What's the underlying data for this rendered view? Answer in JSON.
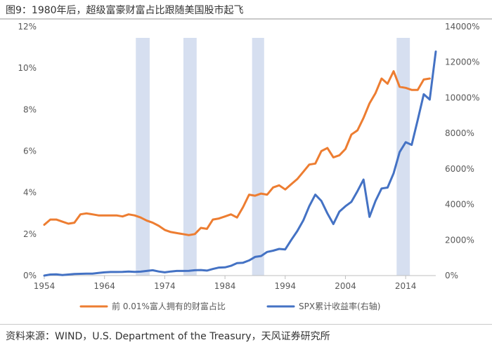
{
  "header": {
    "title": "图9：1980年后，超级富豪财富占比跟随美国股市起飞"
  },
  "footer": {
    "source": "资料来源：WIND，U.S. Department of the Treasury，天风证券研究所"
  },
  "chart_data": {
    "type": "line",
    "title": "图9：1980年后，超级富豪财富占比跟随美国股市起飞",
    "x_ticks": [
      1954,
      1964,
      1974,
      1984,
      1994,
      2004,
      2014
    ],
    "xlim": [
      1954,
      2019
    ],
    "y_left": {
      "ticks": [
        "0%",
        "2%",
        "4%",
        "6%",
        "8%",
        "10%",
        "12%"
      ],
      "lim": [
        0,
        12
      ]
    },
    "y_right": {
      "ticks": [
        "0%",
        "2000%",
        "4000%",
        "6000%",
        "8000%",
        "10000%",
        "12000%",
        "14000%"
      ],
      "lim": [
        0,
        14000
      ]
    },
    "shaded_periods": [
      [
        1969.2,
        1971.5
      ],
      [
        1977.1,
        1979.3
      ],
      [
        1988.5,
        1990.5
      ],
      [
        2012.5,
        2014.7
      ]
    ],
    "series": [
      {
        "name": "前 0.01%富人拥有的财富占比",
        "axis": "left",
        "color": "#ED7D31",
        "x": [
          1954,
          1955,
          1956,
          1957,
          1958,
          1959,
          1960,
          1961,
          1962,
          1963,
          1964,
          1965,
          1966,
          1967,
          1968,
          1969,
          1970,
          1971,
          1972,
          1973,
          1974,
          1975,
          1976,
          1977,
          1978,
          1979,
          1980,
          1981,
          1982,
          1983,
          1984,
          1985,
          1986,
          1987,
          1988,
          1989,
          1990,
          1991,
          1992,
          1993,
          1994,
          1995,
          1996,
          1997,
          1998,
          1999,
          2000,
          2001,
          2002,
          2003,
          2004,
          2005,
          2006,
          2007,
          2008,
          2009,
          2010,
          2011,
          2012,
          2013,
          2014,
          2015,
          2016,
          2017,
          2018
        ],
        "values": [
          2.45,
          2.7,
          2.7,
          2.6,
          2.5,
          2.55,
          2.95,
          3.0,
          2.95,
          2.9,
          2.9,
          2.9,
          2.9,
          2.85,
          2.95,
          2.9,
          2.8,
          2.65,
          2.55,
          2.4,
          2.2,
          2.1,
          2.05,
          2.0,
          1.95,
          2.0,
          2.3,
          2.25,
          2.7,
          2.75,
          2.85,
          2.95,
          2.8,
          3.3,
          3.9,
          3.85,
          3.95,
          3.9,
          4.25,
          4.35,
          4.15,
          4.4,
          4.65,
          5.0,
          5.35,
          5.4,
          6.0,
          6.15,
          5.7,
          5.8,
          6.1,
          6.8,
          7.0,
          7.6,
          8.3,
          8.8,
          9.5,
          9.25,
          9.85,
          9.1,
          9.05,
          8.95,
          8.95,
          9.45,
          9.5
        ]
      },
      {
        "name": "SPX累计收益率(右轴)",
        "axis": "right",
        "color": "#4472C4",
        "x": [
          1954,
          1955,
          1956,
          1957,
          1958,
          1959,
          1960,
          1961,
          1962,
          1963,
          1964,
          1965,
          1966,
          1967,
          1968,
          1969,
          1970,
          1971,
          1972,
          1973,
          1974,
          1975,
          1976,
          1977,
          1978,
          1979,
          1980,
          1981,
          1982,
          1983,
          1984,
          1985,
          1986,
          1987,
          1988,
          1989,
          1990,
          1991,
          1992,
          1993,
          1994,
          1995,
          1996,
          1997,
          1998,
          1999,
          2000,
          2001,
          2002,
          2003,
          2004,
          2005,
          2006,
          2007,
          2008,
          2009,
          2010,
          2011,
          2012,
          2013,
          2014,
          2015,
          2016,
          2017,
          2018,
          2019
        ],
        "values": [
          0,
          60,
          70,
          30,
          60,
          90,
          100,
          110,
          110,
          150,
          180,
          200,
          200,
          210,
          230,
          210,
          220,
          260,
          300,
          230,
          180,
          230,
          260,
          260,
          270,
          300,
          310,
          280,
          370,
          450,
          460,
          550,
          700,
          720,
          850,
          1050,
          1100,
          1330,
          1400,
          1500,
          1470,
          2000,
          2500,
          3100,
          3900,
          4550,
          4200,
          3500,
          2900,
          3600,
          3900,
          4150,
          4750,
          5400,
          3300,
          4200,
          4900,
          4950,
          5750,
          6950,
          7500,
          7350,
          8750,
          10200,
          9900,
          12600
        ]
      }
    ]
  }
}
